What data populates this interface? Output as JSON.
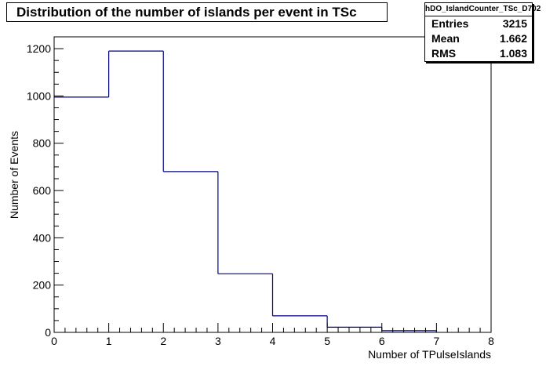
{
  "title": "Distribution of the number of islands per event in TSc",
  "stats": {
    "name": "hDO_IslandCounter_TSc_D702",
    "rows": [
      {
        "label": "Entries",
        "value": "3215"
      },
      {
        "label": "Mean",
        "value": "1.662"
      },
      {
        "label": "RMS",
        "value": "1.083"
      }
    ]
  },
  "colors": {
    "histogram_line": "#000080",
    "axis": "#000000"
  },
  "chart_data": {
    "type": "bar",
    "style": "step-histogram",
    "title": "Distribution of the number of islands per event in TSc",
    "xlabel": "Number of TPulseIslands",
    "ylabel": "Number of Events",
    "xlim": [
      0,
      8
    ],
    "ylim": [
      0,
      1250
    ],
    "bin_edges": [
      0,
      1,
      2,
      3,
      4,
      5,
      6,
      7,
      8
    ],
    "values": [
      995,
      1190,
      680,
      248,
      70,
      22,
      7,
      0
    ],
    "xticks": [
      0,
      1,
      2,
      3,
      4,
      5,
      6,
      7,
      8
    ],
    "yticks": [
      0,
      200,
      400,
      600,
      800,
      1000,
      1200
    ],
    "grid": false,
    "legend": "top-right"
  }
}
